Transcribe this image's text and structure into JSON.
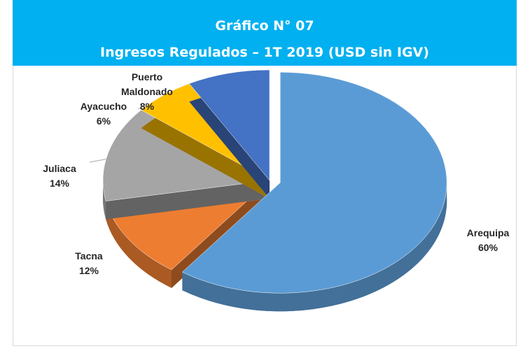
{
  "chart_data": {
    "type": "pie",
    "title": "Gráfico N° 07",
    "subtitle": "Ingresos Regulados – 1T 2019 (USD sin IGV)",
    "categories": [
      "Arequipa",
      "Tacna",
      "Juliaca",
      "Ayacucho",
      "Puerto Maldonado"
    ],
    "values": [
      60,
      12,
      14,
      6,
      8
    ],
    "value_labels": [
      "60%",
      "12%",
      "14%",
      "6%",
      "8%"
    ],
    "colors": [
      "#5b9bd5",
      "#ed7d31",
      "#a5a5a5",
      "#ffc000",
      "#4472c4"
    ]
  }
}
